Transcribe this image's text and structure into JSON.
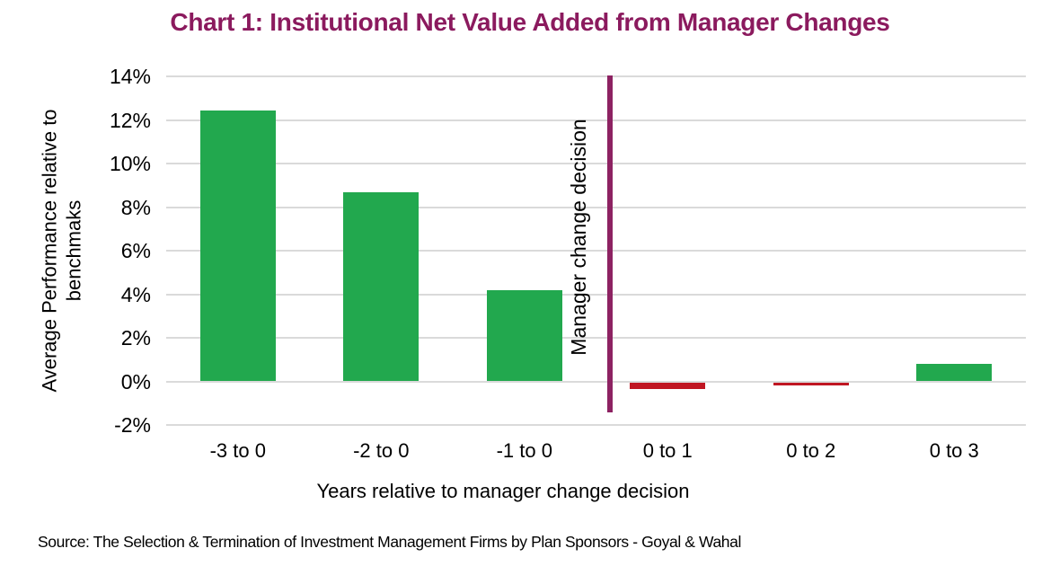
{
  "page": {
    "title": "Chart 1: Institutional Net Value Added from Manager Changes",
    "source_note": "Source: The Selection & Termination of Investment Management Firms by Plan Sponsors - Goyal & Wahal"
  },
  "colors": {
    "title": "#8B1A5E",
    "positive_bar": "#22A84E",
    "negative_bar": "#C01622",
    "gridline": "#DADADA",
    "decision_line": "#8D2262",
    "text": "#000000"
  },
  "chart_data": {
    "type": "bar",
    "title": "Chart 1: Institutional Net Value Added from Manager Changes",
    "categories": [
      "-3 to 0",
      "-2 to 0",
      "-1 to 0",
      "0 to 1",
      "0 to 2",
      "0 to 3"
    ],
    "values": [
      12.45,
      8.7,
      4.2,
      -0.3,
      -0.15,
      0.8
    ],
    "bar_colors": [
      "#22A84E",
      "#22A84E",
      "#22A84E",
      "#C01622",
      "#C01622",
      "#22A84E"
    ],
    "xlabel": "Years relative to manager change decision",
    "ylabel": "Average Performance relative to benchmaks",
    "ylabel_lines": [
      "Average Performance relative to",
      "benchmaks"
    ],
    "ytick_labels": [
      "14%",
      "12%",
      "10%",
      "8%",
      "6%",
      "4%",
      "2%",
      "0%",
      "-2%"
    ],
    "ytick_values": [
      14,
      12,
      10,
      8,
      6,
      4,
      2,
      0,
      -2
    ],
    "ylim": [
      -2,
      14
    ],
    "grid": true,
    "legend": false,
    "annotation": {
      "label": "Manager change decision",
      "type": "vertical-line",
      "between_categories": [
        "-1 to 0",
        "0 to 1"
      ]
    },
    "source": "Source: The Selection & Termination of Investment Management Firms by Plan Sponsors - Goyal & Wahal"
  }
}
